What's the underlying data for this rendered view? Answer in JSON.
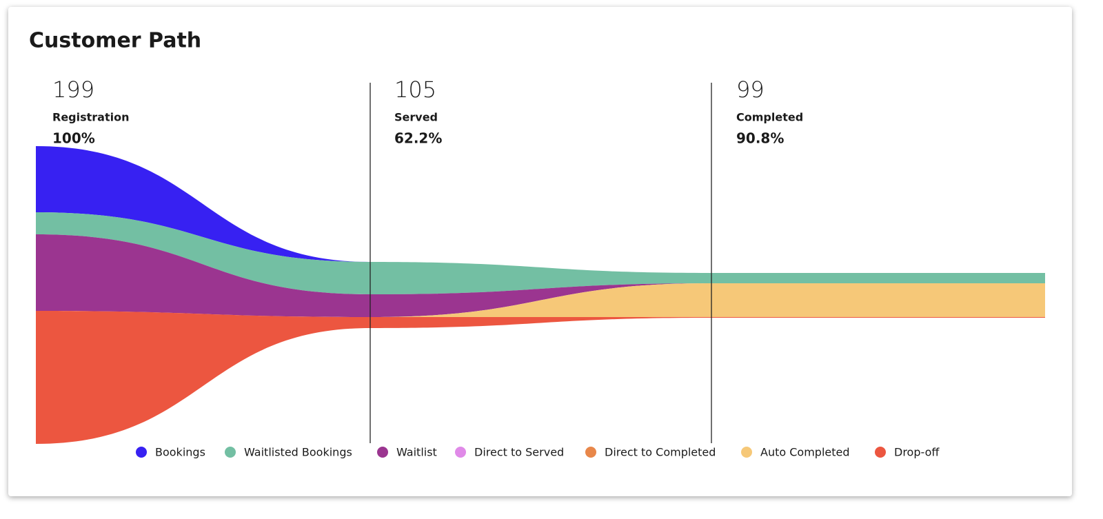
{
  "header": {
    "title": "Customer Path"
  },
  "stages": [
    {
      "count": "199",
      "label": "Registration",
      "percent": "100%"
    },
    {
      "count": "105",
      "label": "Served",
      "percent": "62.2%"
    },
    {
      "count": "99",
      "label": "Completed",
      "percent": "90.8%"
    }
  ],
  "legend": [
    {
      "label": "Bookings",
      "color": "#3721f2"
    },
    {
      "label": "Waitlisted Bookings",
      "color": "#73bfa3"
    },
    {
      "label": "Waitlist",
      "color": "#9b3590"
    },
    {
      "label": "Direct to Served",
      "color": "#e08ae8"
    },
    {
      "label": "Direct to Completed",
      "color": "#e8874a"
    },
    {
      "label": "Auto Completed",
      "color": "#f6c878"
    },
    {
      "label": "Drop-off",
      "color": "#ec5640"
    }
  ]
}
